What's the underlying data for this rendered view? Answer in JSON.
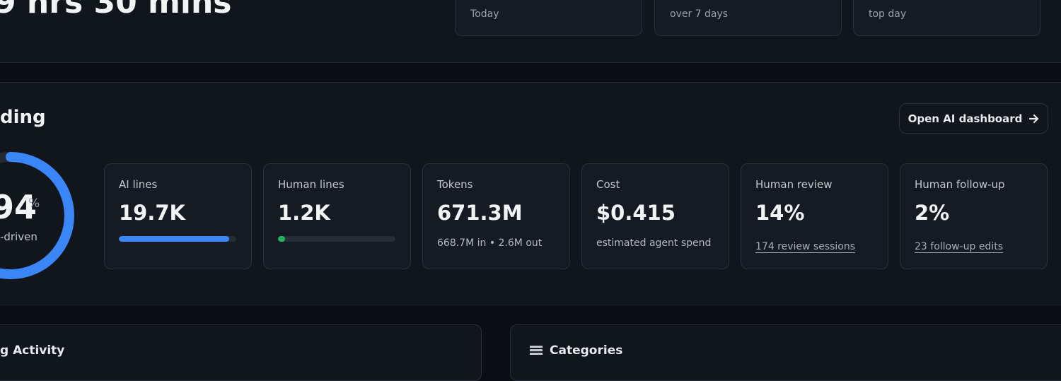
{
  "header": {
    "title": "9 hrs 30 mins",
    "stats": [
      {
        "caption": "Today"
      },
      {
        "caption": "over 7 days"
      },
      {
        "caption": "top day"
      }
    ]
  },
  "ai_section": {
    "title": "ding",
    "button": "Open AI dashboard",
    "gauge": {
      "value": 94,
      "unit": "%",
      "caption": "-driven"
    },
    "metrics": [
      {
        "label": "AI lines",
        "value": "19.7K",
        "bar_percent": 94
      },
      {
        "label": "Human lines",
        "value": "1.2K",
        "bar_percent": 6
      },
      {
        "label": "Tokens",
        "value": "671.3M",
        "note": "668.7M in • 2.6M out"
      },
      {
        "label": "Cost",
        "value": "$0.415",
        "note": "estimated agent spend"
      },
      {
        "label": "Human review",
        "value": "14%",
        "link": "174 review sessions"
      },
      {
        "label": "Human follow-up",
        "value": "2%",
        "link": "23 follow-up edits"
      }
    ]
  },
  "panels": {
    "activity": "g Activity",
    "categories": "Categories"
  }
}
